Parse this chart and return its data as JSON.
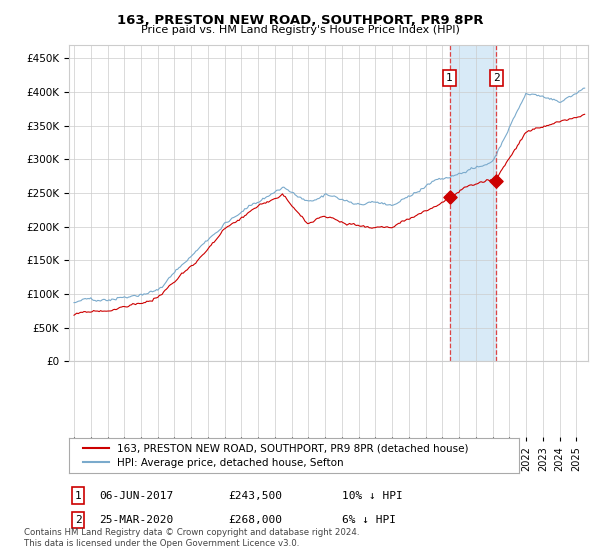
{
  "title": "163, PRESTON NEW ROAD, SOUTHPORT, PR9 8PR",
  "subtitle": "Price paid vs. HM Land Registry's House Price Index (HPI)",
  "footer": "Contains HM Land Registry data © Crown copyright and database right 2024.\nThis data is licensed under the Open Government Licence v3.0.",
  "legend_line1": "163, PRESTON NEW ROAD, SOUTHPORT, PR9 8PR (detached house)",
  "legend_line2": "HPI: Average price, detached house, Sefton",
  "annotation1_label": "1",
  "annotation1_date": "06-JUN-2017",
  "annotation1_price": "£243,500",
  "annotation1_hpi": "10% ↓ HPI",
  "annotation2_label": "2",
  "annotation2_date": "25-MAR-2020",
  "annotation2_price": "£268,000",
  "annotation2_hpi": "6% ↓ HPI",
  "red_color": "#cc0000",
  "blue_color": "#7aaacc",
  "highlight_color": "#d8eaf7",
  "dashed_color": "#dd4444",
  "grid_color": "#cccccc",
  "background_color": "#ffffff",
  "ylim_min": 0,
  "ylim_max": 470000,
  "yticks": [
    0,
    50000,
    100000,
    150000,
    200000,
    250000,
    300000,
    350000,
    400000,
    450000
  ],
  "start_year": 1995,
  "end_year": 2025,
  "marker1_year": 2017.43,
  "marker1_value": 243500,
  "marker2_year": 2020.23,
  "marker2_value": 268000
}
